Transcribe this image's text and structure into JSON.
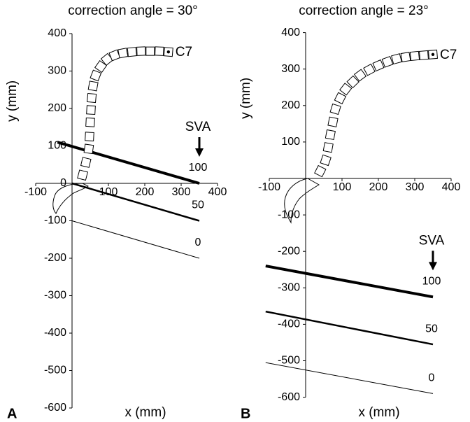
{
  "chart_data": [
    {
      "type": "scatter",
      "panel_label": "A",
      "title": "correction angle = 30°",
      "xlabel": "x (mm)",
      "ylabel": "y (mm)",
      "xlim": [
        -100,
        400
      ],
      "ylim": [
        -600,
        400
      ],
      "xticks": [
        -100,
        100,
        200,
        300,
        400
      ],
      "yticks": [
        -600,
        -500,
        -400,
        -300,
        -200,
        -100,
        0,
        100,
        200,
        300,
        400
      ],
      "points": {
        "x": [
          29,
          38,
          46,
          48,
          50,
          52,
          54,
          58,
          65,
          79,
          96,
          117,
          140,
          165,
          190,
          215,
          240,
          265
        ],
        "y": [
          22,
          56,
          92,
          125,
          163,
          196,
          228,
          260,
          288,
          312,
          331,
          342,
          348,
          351,
          353,
          353,
          353,
          351
        ]
      },
      "point_label": "C7",
      "lines_title": "SVA",
      "lines": [
        {
          "label": "100",
          "x": [
            -40,
            350
          ],
          "y": [
            110,
            0
          ],
          "width": 4
        },
        {
          "label": "50",
          "x": [
            0,
            350
          ],
          "y": [
            0,
            -100
          ],
          "width": 2.5
        },
        {
          "label": "0",
          "x": [
            0,
            350
          ],
          "y": [
            -100,
            -200
          ],
          "width": 1
        }
      ]
    },
    {
      "type": "scatter",
      "panel_label": "B",
      "title": "correction angle = 23°",
      "xlabel": "x (mm)",
      "ylabel": "y (mm)",
      "xlim": [
        -100,
        400
      ],
      "ylim": [
        -600,
        400
      ],
      "xticks": [
        -100,
        100,
        200,
        300,
        400
      ],
      "yticks": [
        -600,
        -500,
        -400,
        -300,
        -200,
        -100,
        100,
        200,
        300,
        400
      ],
      "points": {
        "x": [
          40,
          55,
          62,
          68,
          75,
          82,
          95,
          110,
          130,
          150,
          175,
          200,
          225,
          250,
          275,
          300,
          325,
          350
        ],
        "y": [
          20,
          50,
          85,
          120,
          155,
          190,
          220,
          245,
          265,
          283,
          298,
          310,
          320,
          328,
          333,
          336,
          338,
          340
        ]
      },
      "point_label": "C7",
      "lines_title": "SVA",
      "lines": [
        {
          "label": "100",
          "x": [
            -110,
            350
          ],
          "y": [
            -240,
            -325
          ],
          "width": 4
        },
        {
          "label": "50",
          "x": [
            -110,
            350
          ],
          "y": [
            -365,
            -455
          ],
          "width": 2.5
        },
        {
          "label": "0",
          "x": [
            -110,
            350
          ],
          "y": [
            -505,
            -590
          ],
          "width": 1
        }
      ]
    }
  ]
}
